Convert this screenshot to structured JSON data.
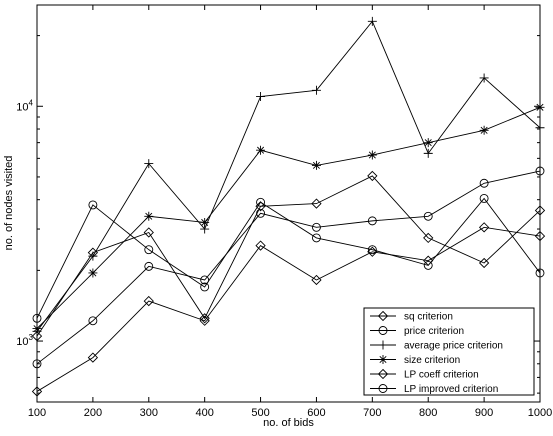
{
  "chart_data": {
    "type": "line",
    "title": "",
    "xlabel": "no. of bids",
    "ylabel": "no. of nodes visited",
    "x": [
      100,
      200,
      300,
      400,
      500,
      600,
      700,
      800,
      900,
      1000
    ],
    "xlim": [
      100,
      1000
    ],
    "x_ticks": [
      "100",
      "200",
      "300",
      "400",
      "500",
      "600",
      "700",
      "800",
      "900",
      "1000"
    ],
    "y_scale": "log",
    "ylim": [
      550,
      27000
    ],
    "y_ticks": [
      {
        "value": 1000,
        "base": "10",
        "exp": "3"
      },
      {
        "value": 10000,
        "base": "10",
        "exp": "4"
      }
    ],
    "grid": false,
    "legend_position": "lower-right",
    "series": [
      {
        "name": "sq criterion",
        "marker": "diamond",
        "values": [
          610,
          850,
          1480,
          1220,
          2550,
          1820,
          2400,
          2200,
          3050,
          2800
        ]
      },
      {
        "name": "price criterion",
        "marker": "circle",
        "values": [
          800,
          1220,
          2080,
          1820,
          3500,
          3050,
          3250,
          3400,
          4700,
          5300
        ]
      },
      {
        "name": "average price criterion",
        "marker": "plus",
        "values": [
          1100,
          2300,
          5700,
          3000,
          11000,
          11700,
          23000,
          6300,
          13200,
          8100
        ]
      },
      {
        "name": "size criterion",
        "marker": "star",
        "values": [
          1130,
          1950,
          3400,
          3200,
          6500,
          5600,
          6200,
          7000,
          7900,
          9900
        ]
      },
      {
        "name": "LP coeff criterion",
        "marker": "diamond",
        "values": [
          1050,
          2380,
          2900,
          1250,
          3750,
          3850,
          5050,
          2750,
          2150,
          3600
        ]
      },
      {
        "name": "LP improved criterion",
        "marker": "circle",
        "values": [
          1250,
          3800,
          2450,
          1700,
          3900,
          2750,
          2450,
          2100,
          4050,
          1950
        ]
      }
    ]
  }
}
